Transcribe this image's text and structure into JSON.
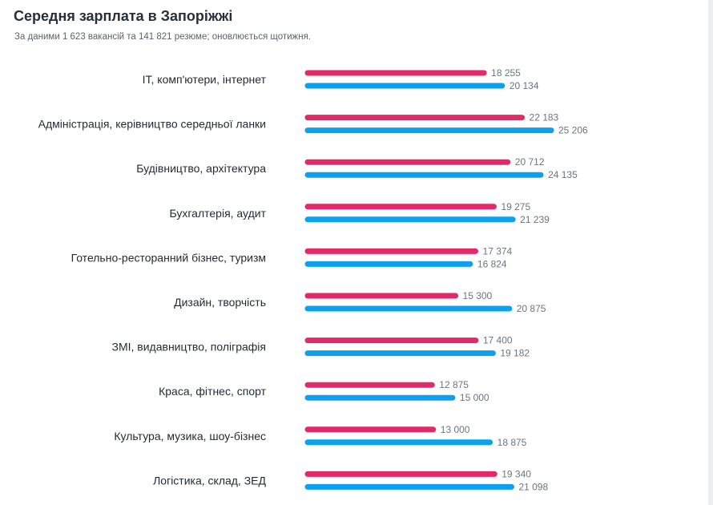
{
  "title": "Середня зарплата в Запоріжжі",
  "subtitle": "За даними 1 623 вакансій та 141 821 резюме; оновлюється щотижня.",
  "colors": {
    "series_1": "#e22a6a",
    "series_2": "#0d9ff0"
  },
  "chart_data": {
    "type": "bar",
    "orientation": "horizontal",
    "categories": [
      "ІТ, комп'ютери, інтернет",
      "Адміністрація, керівництво середньої ланки",
      "Будівництво, архітектура",
      "Бухгалтерія, аудит",
      "Готельно-ресторанний бізнес, туризм",
      "Дизайн, творчість",
      "ЗМІ, видавництво, поліграфія",
      "Краса, фітнес, спорт",
      "Культура, музика, шоу-бізнес",
      "Логістика, склад, ЗЕД"
    ],
    "series": [
      {
        "values": [
          18255,
          22183,
          20712,
          19275,
          17374,
          15300,
          17400,
          12875,
          13000,
          19340
        ],
        "labels": [
          "18 255",
          "22 183",
          "20 712",
          "19 275",
          "17 374",
          "15 300",
          "17 400",
          "12 875",
          "13 000",
          "19 340"
        ]
      },
      {
        "values": [
          20134,
          25206,
          24135,
          21239,
          16824,
          20875,
          19182,
          15000,
          18875,
          21098
        ],
        "labels": [
          "20 134",
          "25 206",
          "24 135",
          "21 239",
          "16 824",
          "20 875",
          "19 182",
          "15 000",
          "18 875",
          "21 098"
        ]
      }
    ],
    "xlim": [
      0,
      25206
    ],
    "grid": false,
    "legend": "none"
  }
}
